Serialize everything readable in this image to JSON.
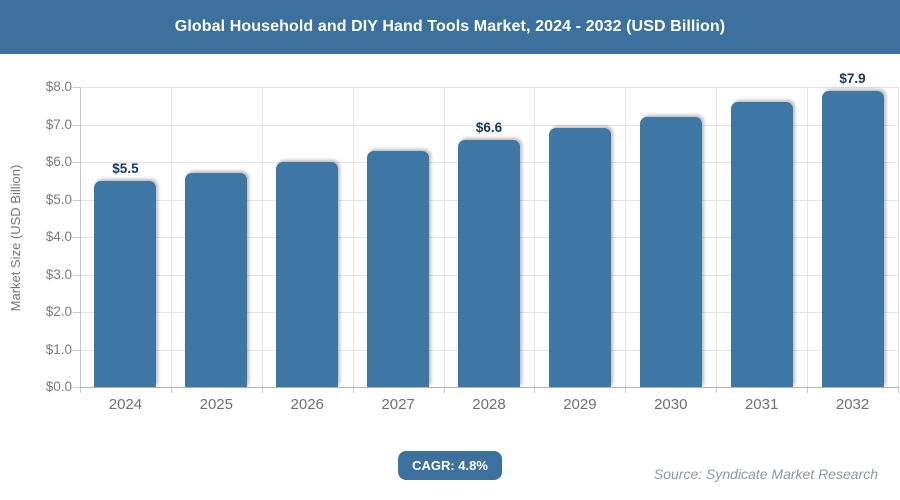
{
  "header": {
    "title": "Global Household and DIY Hand Tools Market, 2024 - 2032 (USD Billion)"
  },
  "chart_data": {
    "type": "bar",
    "title": "Global Household and DIY Hand Tools Market, 2024 - 2032 (USD Billion)",
    "categories": [
      "2024",
      "2025",
      "2026",
      "2027",
      "2028",
      "2029",
      "2030",
      "2031",
      "2032"
    ],
    "values": [
      5.5,
      5.7,
      6.0,
      6.3,
      6.6,
      6.9,
      7.2,
      7.6,
      7.9
    ],
    "point_labels": [
      "$5.5",
      null,
      null,
      null,
      "$6.6",
      null,
      null,
      null,
      "$7.9"
    ],
    "xlabel": "",
    "ylabel": "Market Size (USD Billion)",
    "y_ticks": [
      "$0.0",
      "$1.0",
      "$2.0",
      "$3.0",
      "$4.0",
      "$5.0",
      "$6.0",
      "$7.0",
      "$8.0"
    ],
    "ylim": [
      0,
      8
    ],
    "grid": true,
    "legend": "none"
  },
  "footer": {
    "cagr_label": "CAGR: 4.8%",
    "source": "Source: Syndicate Market Research"
  },
  "colors": {
    "header_bg": "#3c719d",
    "bar": "#3e76a4",
    "badge_bg": "#3c719d",
    "data_label": "#17375e",
    "gridline": "#e4e4e4",
    "source_text": "#8b98a1"
  }
}
